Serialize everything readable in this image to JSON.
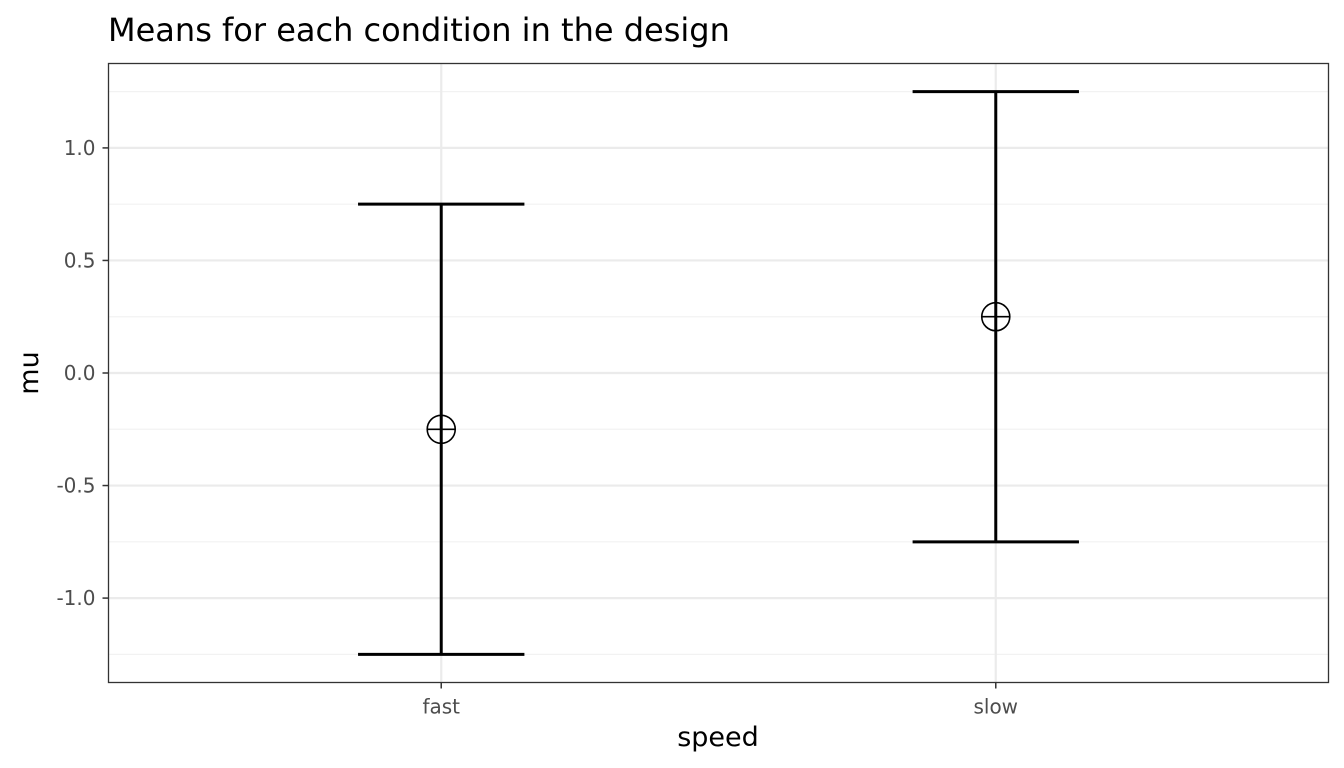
{
  "chart_data": {
    "type": "errorbar",
    "title": "Means for each condition in the design",
    "xlabel": "speed",
    "ylabel": "mu",
    "categories": [
      "fast",
      "slow"
    ],
    "series": [
      {
        "name": "mu",
        "values": [
          -0.25,
          0.25
        ],
        "lower": [
          -1.25,
          -0.75
        ],
        "upper": [
          0.75,
          1.25
        ]
      }
    ],
    "ylim": [
      -1.375,
      1.375
    ],
    "yticks": [
      -1.0,
      -0.5,
      0.0,
      0.5,
      1.0
    ],
    "ytick_labels": [
      "-1.0",
      "-0.5",
      "0.0",
      "0.5",
      "1.0"
    ],
    "grid": true,
    "theme": "bw",
    "colors": {
      "panel_border": "#333333",
      "grid_major": "#ebebeb",
      "grid_minor": "#f2f2f2",
      "tick_text": "#4d4d4d",
      "mark": "#000000"
    }
  }
}
